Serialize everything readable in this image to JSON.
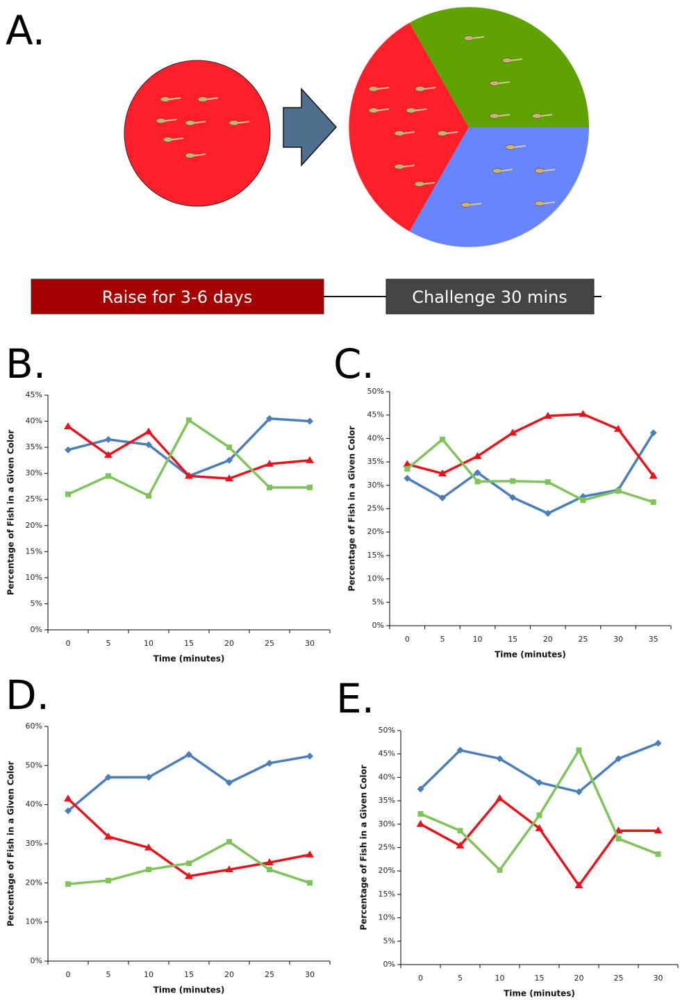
{
  "diagram": {
    "label": "A.",
    "steps": [
      "Raise for 3-6 days",
      "Challenge 30 mins"
    ]
  },
  "chart_data": [
    {
      "type": "line",
      "title": "B.",
      "x_label": "Time (minutes)",
      "y_label": "Percentage of Fish in a Given Color",
      "categories": [
        "0",
        "5",
        "10",
        "15",
        "20",
        "25",
        "30"
      ],
      "ylim": [
        0,
        45
      ],
      "yticks": [
        {
          "value": 0,
          "label": "0%"
        },
        {
          "value": 5,
          "label": "5%"
        },
        {
          "value": 10,
          "label": "10%"
        },
        {
          "value": 15,
          "label": "15%"
        },
        {
          "value": 20,
          "label": "20%"
        },
        {
          "value": 25,
          "label": "25%"
        },
        {
          "value": 30,
          "label": "30%"
        },
        {
          "value": 35,
          "label": "35%"
        },
        {
          "value": 40,
          "label": "40%"
        },
        {
          "value": 45,
          "label": "45%"
        }
      ],
      "series": [
        {
          "color": "#4a7ebb",
          "marker": "diamond",
          "values": [
            34.5,
            36.5,
            35.5,
            29.5,
            32.5,
            40.5,
            40
          ]
        },
        {
          "color": "#e8131a",
          "marker": "triangle",
          "values": [
            39,
            33.5,
            38,
            29.5,
            29,
            31.8,
            32.5
          ]
        },
        {
          "color": "#7ec45a",
          "marker": "square",
          "values": [
            26,
            29.5,
            25.7,
            40.2,
            35,
            27.3,
            27.3
          ]
        }
      ]
    },
    {
      "type": "line",
      "title": "C.",
      "x_label": "Time (minutes)",
      "y_label": "Percentage of Fish in a Given Color",
      "categories": [
        "0",
        "5",
        "10",
        "15",
        "20",
        "25",
        "30",
        "35"
      ],
      "ylim": [
        0,
        50
      ],
      "yticks": [
        {
          "value": 0,
          "label": "0%"
        },
        {
          "value": 5,
          "label": "5%"
        },
        {
          "value": 10,
          "label": "10%"
        },
        {
          "value": 15,
          "label": "15%"
        },
        {
          "value": 20,
          "label": "20%"
        },
        {
          "value": 25,
          "label": "25%"
        },
        {
          "value": 30,
          "label": "30%"
        },
        {
          "value": 35,
          "label": "35%"
        },
        {
          "value": 40,
          "label": "40%"
        },
        {
          "value": 45,
          "label": "45%"
        },
        {
          "value": 50,
          "label": "50%"
        }
      ],
      "series": [
        {
          "color": "#4a7ebb",
          "marker": "diamond",
          "values": [
            31.5,
            27.3,
            32.7,
            27.4,
            24,
            27.6,
            29,
            41.2
          ]
        },
        {
          "color": "#e8131a",
          "marker": "triangle",
          "values": [
            34.5,
            32.5,
            36.2,
            41.2,
            44.8,
            45.2,
            42,
            32
          ]
        },
        {
          "color": "#7ec45a",
          "marker": "square",
          "values": [
            33.5,
            39.8,
            30.8,
            30.9,
            30.7,
            26.8,
            28.8,
            26.4
          ]
        }
      ]
    },
    {
      "type": "line",
      "title": "D.",
      "x_label": "Time (minutes)",
      "y_label": "Percentage of Fish in a Given Color",
      "categories": [
        "0",
        "5",
        "10",
        "15",
        "20",
        "25",
        "30"
      ],
      "ylim": [
        0,
        60
      ],
      "yticks": [
        {
          "value": 0,
          "label": "0%"
        },
        {
          "value": 10,
          "label": "10%"
        },
        {
          "value": 20,
          "label": "20%"
        },
        {
          "value": 30,
          "label": "30%"
        },
        {
          "value": 40,
          "label": "40%"
        },
        {
          "value": 50,
          "label": "50%"
        },
        {
          "value": 60,
          "label": "60%"
        }
      ],
      "series": [
        {
          "color": "#4a7ebb",
          "marker": "diamond",
          "values": [
            38.4,
            47,
            47,
            52.8,
            45.6,
            50.6,
            52.4
          ]
        },
        {
          "color": "#e8131a",
          "marker": "triangle",
          "values": [
            41.5,
            31.8,
            29,
            21.7,
            23.4,
            25.2,
            27.2
          ]
        },
        {
          "color": "#7ec45a",
          "marker": "square",
          "values": [
            19.7,
            20.6,
            23.4,
            25,
            30.5,
            23.4,
            20
          ]
        }
      ]
    },
    {
      "type": "line",
      "title": "E.",
      "x_label": "Time (minutes)",
      "y_label": "Percentage of Fish in a Given Color",
      "categories": [
        "0",
        "5",
        "10",
        "15",
        "20",
        "25",
        "30"
      ],
      "ylim": [
        0,
        50
      ],
      "yticks": [
        {
          "value": 0,
          "label": "0%"
        },
        {
          "value": 5,
          "label": "5%"
        },
        {
          "value": 10,
          "label": "10%"
        },
        {
          "value": 15,
          "label": "15%"
        },
        {
          "value": 20,
          "label": "20%"
        },
        {
          "value": 25,
          "label": "25%"
        },
        {
          "value": 30,
          "label": "30%"
        },
        {
          "value": 35,
          "label": "35%"
        },
        {
          "value": 40,
          "label": "40%"
        },
        {
          "value": 45,
          "label": "45%"
        },
        {
          "value": 50,
          "label": "50%"
        }
      ],
      "series": [
        {
          "color": "#4a7ebb",
          "marker": "diamond",
          "values": [
            37.5,
            45.8,
            44,
            38.9,
            36.9,
            44,
            47.3
          ]
        },
        {
          "color": "#e8131a",
          "marker": "triangle",
          "values": [
            30,
            25.4,
            35.5,
            29.1,
            16.9,
            28.6,
            28.6
          ]
        },
        {
          "color": "#7ec45a",
          "marker": "square",
          "values": [
            32.2,
            28.6,
            20.2,
            31.9,
            45.8,
            26.9,
            23.6
          ]
        }
      ]
    }
  ]
}
